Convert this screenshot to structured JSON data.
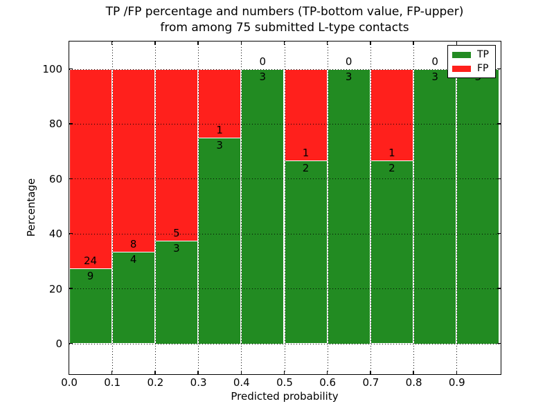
{
  "chart_data": {
    "type": "bar",
    "stacked": true,
    "title_lines": [
      "TP /FP percentage and numbers (TP-bottom value, FP-upper)",
      "from among 75 submitted L-type contacts"
    ],
    "xlabel": "Predicted probability",
    "ylabel": "Percentage",
    "categories": [
      "0.0-0.1",
      "0.1-0.2",
      "0.2-0.3",
      "0.3-0.4",
      "0.4-0.5",
      "0.5-0.6",
      "0.6-0.7",
      "0.7-0.8",
      "0.8-0.9",
      "0.9-1.0"
    ],
    "series": [
      {
        "name": "TP",
        "color": "#228B22",
        "counts": [
          9,
          4,
          3,
          3,
          3,
          2,
          3,
          2,
          3,
          3
        ]
      },
      {
        "name": "FP",
        "color": "#ff201c",
        "counts": [
          24,
          8,
          5,
          1,
          0,
          1,
          0,
          1,
          0,
          0
        ]
      }
    ],
    "bar_heights_percent_tp": [
      27.27,
      33.33,
      37.5,
      75.0,
      100.0,
      66.67,
      100.0,
      66.67,
      100.0,
      100.0
    ],
    "xticks": [
      "0.0",
      "0.1",
      "0.2",
      "0.3",
      "0.4",
      "0.5",
      "0.6",
      "0.7",
      "0.8",
      "0.9"
    ],
    "yticks": [
      0,
      20,
      40,
      60,
      80,
      100
    ],
    "xlim": [
      0.0,
      1.0
    ],
    "ylim": [
      -11,
      110
    ],
    "grid": "dotted, drawn above bars",
    "bar_edge_color": "#ffffff",
    "legend_position": "upper right",
    "total_contacts": 75
  }
}
